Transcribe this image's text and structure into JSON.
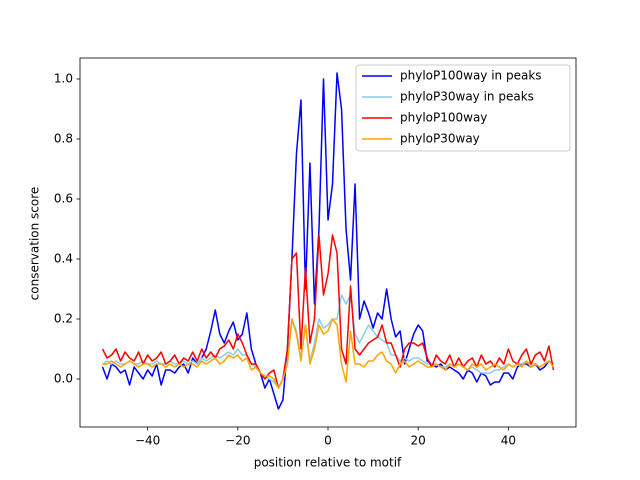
{
  "chart_data": {
    "type": "line",
    "xlabel": "position relative to motif",
    "ylabel": "conservation score",
    "xlim": [
      -55,
      55
    ],
    "ylim": [
      -0.16,
      1.07
    ],
    "xticks": [
      {
        "value": -40,
        "label": "−40"
      },
      {
        "value": -20,
        "label": "−20"
      },
      0,
      20,
      40
    ],
    "yticks": [
      {
        "value": 0,
        "label": "0.0"
      },
      0.2,
      0.4,
      0.6,
      0.8,
      {
        "value": 1,
        "label": "1.0"
      }
    ],
    "legend": "upper right",
    "x": [
      -50,
      -49,
      -48,
      -47,
      -46,
      -45,
      -44,
      -43,
      -42,
      -41,
      -40,
      -39,
      -38,
      -37,
      -36,
      -35,
      -34,
      -33,
      -32,
      -31,
      -30,
      -29,
      -28,
      -27,
      -26,
      -25,
      -24,
      -23,
      -22,
      -21,
      -20,
      -19,
      -18,
      -17,
      -16,
      -15,
      -14,
      -13,
      -12,
      -11,
      -10,
      -9,
      -8,
      -7,
      -6,
      -5,
      -4,
      -3,
      -2,
      -1,
      0,
      1,
      2,
      3,
      4,
      5,
      6,
      7,
      8,
      9,
      10,
      11,
      12,
      13,
      14,
      15,
      16,
      17,
      18,
      19,
      20,
      21,
      22,
      23,
      24,
      25,
      26,
      27,
      28,
      29,
      30,
      31,
      32,
      33,
      34,
      35,
      36,
      37,
      38,
      39,
      40,
      41,
      42,
      43,
      44,
      45,
      46,
      47,
      48,
      49,
      50
    ],
    "series": [
      {
        "name": "phyloP100way in peaks",
        "color": "#0000ff",
        "values": [
          0.04,
          0.0,
          0.05,
          0.04,
          0.02,
          0.03,
          -0.02,
          0.04,
          0.02,
          0.0,
          0.03,
          0.01,
          0.05,
          -0.02,
          0.03,
          0.03,
          0.02,
          0.04,
          0.05,
          0.02,
          0.07,
          0.05,
          0.07,
          0.1,
          0.16,
          0.23,
          0.15,
          0.12,
          0.16,
          0.19,
          0.13,
          0.15,
          0.22,
          0.1,
          0.05,
          0.02,
          -0.03,
          0.0,
          -0.05,
          -0.1,
          -0.07,
          0.1,
          0.4,
          0.75,
          0.93,
          0.3,
          0.72,
          0.25,
          0.5,
          1.0,
          0.53,
          0.65,
          1.02,
          0.9,
          0.5,
          0.33,
          0.65,
          0.2,
          0.26,
          0.22,
          0.17,
          0.22,
          0.2,
          0.3,
          0.2,
          0.14,
          0.16,
          0.05,
          0.1,
          0.15,
          0.18,
          0.16,
          0.06,
          0.05,
          0.04,
          0.05,
          0.03,
          0.04,
          0.03,
          0.02,
          0.0,
          0.03,
          0.02,
          -0.01,
          0.02,
          0.01,
          -0.02,
          -0.01,
          -0.01,
          0.02,
          0.02,
          0.0,
          0.04,
          0.05,
          0.05,
          0.04,
          0.05,
          0.03,
          0.04,
          0.06,
          0.05
        ]
      },
      {
        "name": "phyloP30way in peaks",
        "color": "#87ceeb",
        "values": [
          0.05,
          0.06,
          0.05,
          0.06,
          0.05,
          0.05,
          0.06,
          0.05,
          0.05,
          0.06,
          0.05,
          0.05,
          0.06,
          0.05,
          0.05,
          0.06,
          0.05,
          0.05,
          0.06,
          0.05,
          0.06,
          0.05,
          0.07,
          0.06,
          0.07,
          0.08,
          0.07,
          0.08,
          0.09,
          0.08,
          0.1,
          0.08,
          0.08,
          0.05,
          0.04,
          0.02,
          0.01,
          0.0,
          -0.01,
          -0.03,
          0.0,
          0.06,
          0.2,
          0.16,
          0.07,
          0.18,
          0.06,
          0.12,
          0.2,
          0.17,
          0.18,
          0.2,
          0.2,
          0.28,
          0.25,
          0.28,
          0.15,
          0.12,
          0.15,
          0.18,
          0.16,
          0.14,
          0.13,
          0.12,
          0.08,
          0.08,
          0.06,
          0.07,
          0.06,
          0.07,
          0.07,
          0.06,
          0.05,
          0.05,
          0.05,
          0.04,
          0.04,
          0.05,
          0.04,
          0.05,
          0.04,
          0.03,
          0.04,
          0.03,
          0.02,
          0.02,
          0.02,
          0.03,
          0.03,
          0.04,
          0.05,
          0.04,
          0.05,
          0.05,
          0.06,
          0.05,
          0.05,
          0.04,
          0.05,
          0.06,
          0.05
        ]
      },
      {
        "name": "phyloP100way",
        "color": "#ff0000",
        "values": [
          0.1,
          0.07,
          0.08,
          0.1,
          0.06,
          0.09,
          0.07,
          0.06,
          0.09,
          0.05,
          0.08,
          0.06,
          0.07,
          0.09,
          0.05,
          0.06,
          0.08,
          0.05,
          0.07,
          0.06,
          0.09,
          0.06,
          0.1,
          0.07,
          0.09,
          0.07,
          0.1,
          0.11,
          0.13,
          0.1,
          0.15,
          0.12,
          0.08,
          0.05,
          0.05,
          0.02,
          0.0,
          0.02,
          0.03,
          -0.03,
          0.0,
          0.1,
          0.4,
          0.42,
          0.1,
          0.37,
          0.12,
          0.2,
          0.48,
          0.28,
          0.35,
          0.48,
          0.42,
          0.1,
          0.05,
          0.31,
          0.1,
          0.08,
          0.1,
          0.12,
          0.13,
          0.14,
          0.18,
          0.12,
          0.12,
          0.08,
          0.04,
          0.1,
          0.12,
          0.12,
          0.11,
          0.12,
          0.07,
          0.04,
          0.08,
          0.06,
          0.05,
          0.08,
          0.04,
          0.07,
          0.04,
          0.06,
          0.07,
          0.04,
          0.08,
          0.05,
          0.06,
          0.04,
          0.07,
          0.05,
          0.1,
          0.06,
          0.05,
          0.08,
          0.1,
          0.05,
          0.08,
          0.09,
          0.06,
          0.11,
          0.03
        ]
      },
      {
        "name": "phyloP30way",
        "color": "#ffa500",
        "values": [
          0.05,
          0.05,
          0.06,
          0.05,
          0.04,
          0.05,
          0.06,
          0.05,
          0.04,
          0.05,
          0.05,
          0.04,
          0.05,
          0.05,
          0.04,
          0.05,
          0.04,
          0.05,
          0.04,
          0.05,
          0.05,
          0.04,
          0.06,
          0.05,
          0.06,
          0.07,
          0.05,
          0.06,
          0.08,
          0.07,
          0.08,
          0.06,
          0.07,
          0.03,
          0.04,
          0.02,
          0.01,
          0.01,
          0.0,
          -0.03,
          0.0,
          0.05,
          0.2,
          0.15,
          0.06,
          0.18,
          0.05,
          0.1,
          0.18,
          0.15,
          0.16,
          0.2,
          0.18,
          0.05,
          -0.01,
          0.16,
          0.05,
          0.05,
          0.04,
          0.06,
          0.06,
          0.08,
          0.09,
          0.06,
          0.05,
          0.02,
          0.05,
          0.06,
          0.04,
          0.05,
          0.06,
          0.05,
          0.04,
          0.04,
          0.05,
          0.04,
          0.03,
          0.05,
          0.04,
          0.05,
          0.04,
          0.03,
          0.05,
          0.04,
          0.05,
          0.03,
          0.04,
          0.05,
          0.04,
          0.03,
          0.05,
          0.04,
          0.05,
          0.04,
          0.06,
          0.04,
          0.05,
          0.04,
          0.05,
          0.06,
          0.04
        ]
      }
    ]
  }
}
